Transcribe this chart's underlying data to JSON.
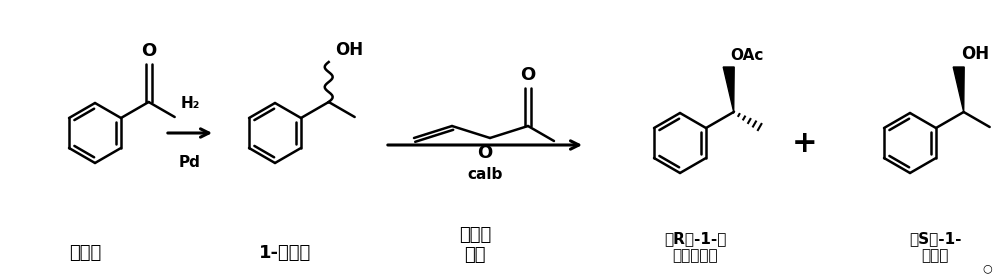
{
  "background_color": "#ffffff",
  "figsize": [
    10.0,
    2.78
  ],
  "dpi": 100,
  "label1": "苯乙酮",
  "label2": "1-苯乙醇",
  "label3": "乙酸乙\n烯酯",
  "label4": "（R）-1-苯\n乙醇乙酸酯",
  "label5": "（S）-1-\n苯乙醇",
  "arrow1_label_top": "H₂",
  "arrow1_label_bottom": "Pd",
  "arrow2_label_bottom": "calb",
  "plus": "+"
}
